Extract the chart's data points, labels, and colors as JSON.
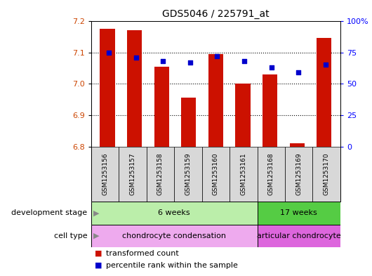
{
  "title": "GDS5046 / 225791_at",
  "samples": [
    "GSM1253156",
    "GSM1253157",
    "GSM1253158",
    "GSM1253159",
    "GSM1253160",
    "GSM1253161",
    "GSM1253168",
    "GSM1253169",
    "GSM1253170"
  ],
  "transformed_count": [
    7.175,
    7.17,
    7.055,
    6.955,
    7.095,
    7.0,
    7.03,
    6.81,
    7.145
  ],
  "percentile_rank": [
    75,
    71,
    68,
    67,
    72,
    68,
    63,
    59,
    65
  ],
  "ylim_left": [
    6.8,
    7.2
  ],
  "yticks_left": [
    6.8,
    6.9,
    7.0,
    7.1,
    7.2
  ],
  "yticks_right": [
    0,
    25,
    50,
    75,
    100
  ],
  "bar_color": "#cc1100",
  "dot_color": "#0000cc",
  "bar_bottom": 6.8,
  "dev_stage_groups": [
    {
      "label": "6 weeks",
      "start": 0,
      "end": 6,
      "color": "#bbeeaa"
    },
    {
      "label": "17 weeks",
      "start": 6,
      "end": 9,
      "color": "#55cc44"
    }
  ],
  "cell_type_groups": [
    {
      "label": "chondrocyte condensation",
      "start": 0,
      "end": 6,
      "color": "#eeaaee"
    },
    {
      "label": "articular chondrocyte",
      "start": 6,
      "end": 9,
      "color": "#dd66dd"
    }
  ],
  "dev_stage_label": "development stage",
  "cell_type_label": "cell type",
  "legend_bar_label": "transformed count",
  "legend_dot_label": "percentile rank within the sample",
  "background_color": "#ffffff",
  "plot_bg": "#ffffff",
  "label_box_color": "#d8d8d8",
  "grid_yticks": [
    6.9,
    7.0,
    7.1
  ]
}
